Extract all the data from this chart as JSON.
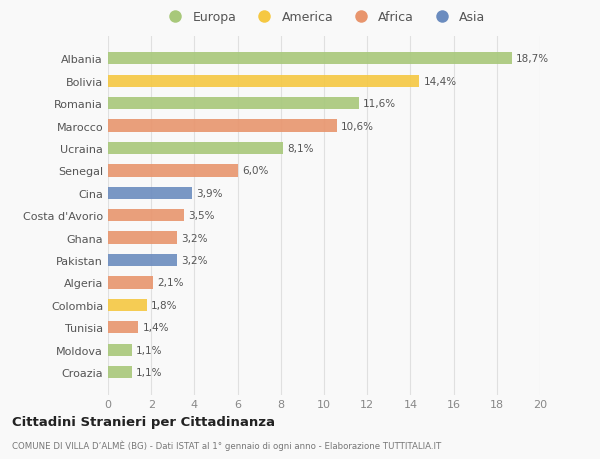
{
  "categories": [
    "Croazia",
    "Moldova",
    "Tunisia",
    "Colombia",
    "Algeria",
    "Pakistan",
    "Ghana",
    "Costa d'Avorio",
    "Cina",
    "Senegal",
    "Ucraina",
    "Marocco",
    "Romania",
    "Bolivia",
    "Albania"
  ],
  "values": [
    1.1,
    1.1,
    1.4,
    1.8,
    2.1,
    3.2,
    3.2,
    3.5,
    3.9,
    6.0,
    8.1,
    10.6,
    11.6,
    14.4,
    18.7
  ],
  "labels": [
    "1,1%",
    "1,1%",
    "1,4%",
    "1,8%",
    "2,1%",
    "3,2%",
    "3,2%",
    "3,5%",
    "3,9%",
    "6,0%",
    "8,1%",
    "10,6%",
    "11,6%",
    "14,4%",
    "18,7%"
  ],
  "colors": [
    "#a8c87a",
    "#a8c87a",
    "#e8956d",
    "#f5c842",
    "#e8956d",
    "#6b8cbf",
    "#e8956d",
    "#e8956d",
    "#6b8cbf",
    "#e8956d",
    "#a8c87a",
    "#e8956d",
    "#a8c87a",
    "#f5c842",
    "#a8c87a"
  ],
  "legend_labels": [
    "Europa",
    "America",
    "Africa",
    "Asia"
  ],
  "legend_colors": [
    "#a8c87a",
    "#f5c842",
    "#e8956d",
    "#6b8cbf"
  ],
  "title": "Cittadini Stranieri per Cittadinanza",
  "subtitle": "COMUNE DI VILLA D’ALMÈ (BG) - Dati ISTAT al 1° gennaio di ogni anno - Elaborazione TUTTITALIA.IT",
  "xlim": [
    0,
    20
  ],
  "xticks": [
    0,
    2,
    4,
    6,
    8,
    10,
    12,
    14,
    16,
    18,
    20
  ],
  "background_color": "#f9f9f9",
  "grid_color": "#e0e0e0"
}
